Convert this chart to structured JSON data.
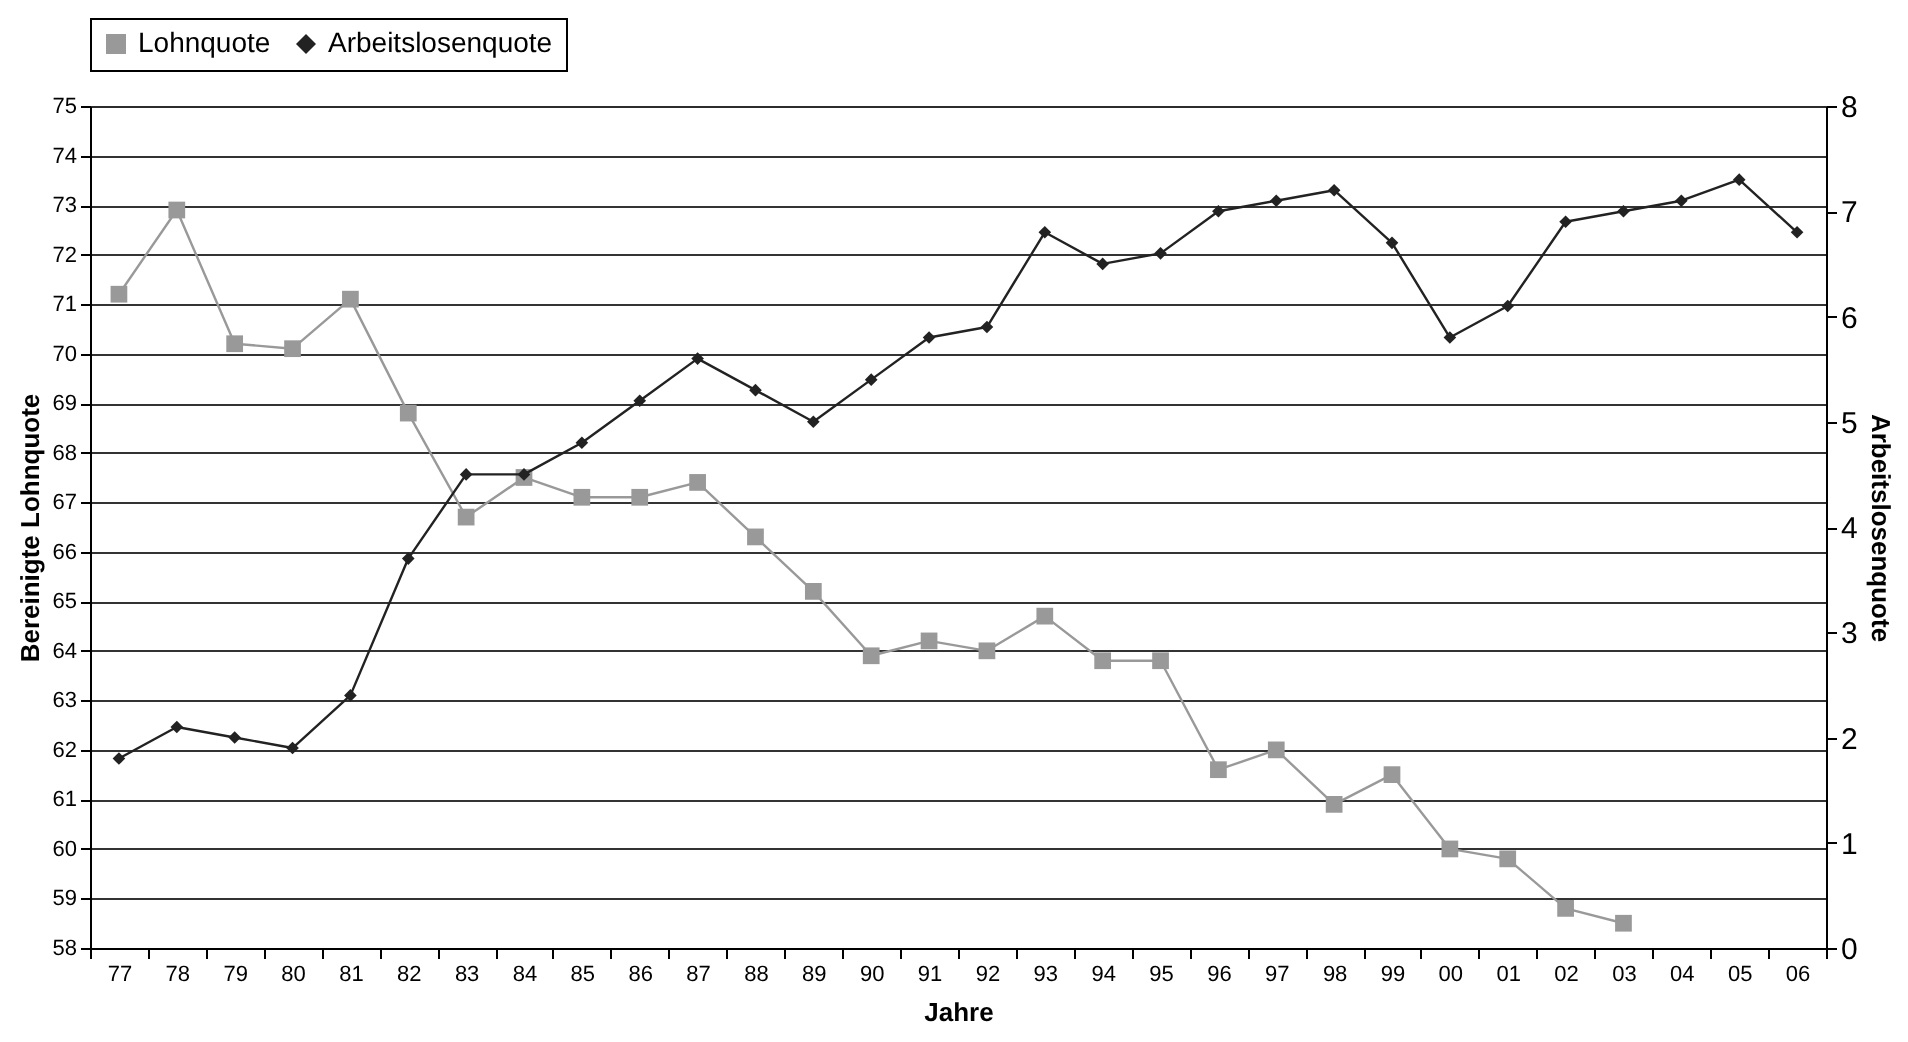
{
  "chart_data": {
    "type": "line",
    "xlabel": "Jahre",
    "ylabel": "Bereinigte Lohnquote",
    "y2label": "Arbeitslosenquote",
    "categories": [
      "77",
      "78",
      "79",
      "80",
      "81",
      "82",
      "83",
      "84",
      "85",
      "86",
      "87",
      "88",
      "89",
      "90",
      "91",
      "92",
      "93",
      "94",
      "95",
      "96",
      "97",
      "98",
      "99",
      "00",
      "01",
      "02",
      "03",
      "04",
      "05",
      "06"
    ],
    "series": [
      {
        "name": "Lohnquote",
        "color": "#999999",
        "marker": "square",
        "values": [
          71.2,
          72.9,
          70.2,
          70.1,
          71.1,
          68.8,
          66.7,
          67.5,
          67.1,
          67.1,
          67.4,
          66.3,
          65.2,
          63.9,
          64.2,
          64.0,
          64.7,
          63.8,
          63.8,
          61.6,
          62.0,
          60.9,
          61.5,
          60.0,
          59.8,
          58.8,
          58.5,
          null,
          null,
          null
        ]
      },
      {
        "name": "Arbeitslosenquote",
        "color": "#222222",
        "marker": "diamond",
        "axis": "y2",
        "values": [
          1.8,
          2.1,
          2.0,
          1.9,
          2.4,
          3.7,
          4.5,
          4.5,
          4.8,
          5.2,
          5.6,
          5.3,
          5.0,
          5.4,
          5.8,
          5.9,
          6.8,
          6.5,
          6.6,
          7.0,
          7.1,
          7.2,
          6.7,
          5.8,
          6.1,
          6.9,
          7.0,
          7.1,
          7.3,
          6.8
        ]
      }
    ],
    "ylim": [
      58,
      75
    ],
    "yticks": [
      58,
      59,
      60,
      61,
      62,
      63,
      64,
      65,
      66,
      67,
      68,
      69,
      70,
      71,
      72,
      73,
      74,
      75
    ],
    "y2lim": [
      0,
      8
    ],
    "y2ticks": [
      0,
      1,
      2,
      3,
      4,
      5,
      6,
      7,
      8
    ],
    "grid": "y",
    "legend": "top",
    "line_style": "solid"
  }
}
